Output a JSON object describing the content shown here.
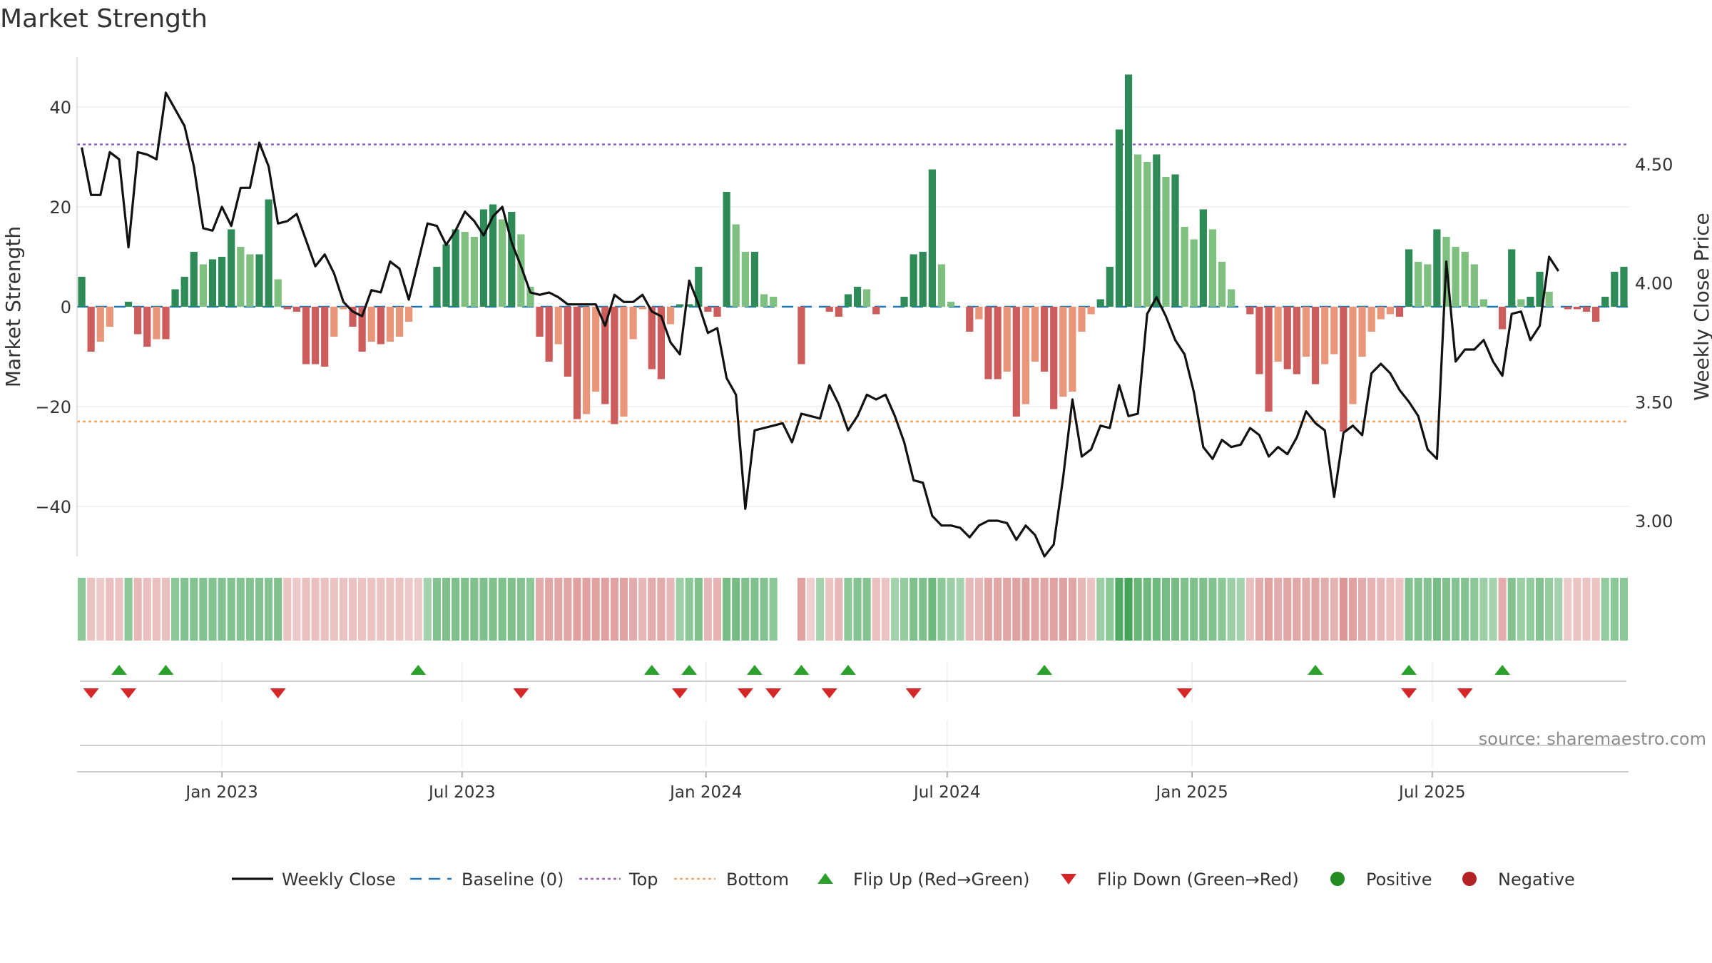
{
  "title": "Market Strength",
  "source": "source: sharemaestro.com",
  "chart_data": {
    "type": "bar",
    "title": "Market Strength",
    "ylabel_left": "Market Strength",
    "ylabel_right": "Weekly Close Price",
    "ylim_left": [
      -50,
      50
    ],
    "ylim_right": [
      2.85,
      4.95
    ],
    "left_ticks": [
      40,
      20,
      0,
      -20,
      -40
    ],
    "left_tick_labels": [
      "40",
      "20",
      "0",
      "−20",
      "−40"
    ],
    "right_ticks": [
      4.5,
      4.0,
      3.5,
      3.0
    ],
    "right_tick_labels": [
      "4.50",
      "4.00",
      "3.50",
      "3.00"
    ],
    "x_tick_labels": [
      "Jan 2023",
      "Jul 2023",
      "Jan 2024",
      "Jul 2024",
      "Jan 2025",
      "Jul 2025"
    ],
    "x_tick_positions": [
      15.5,
      41.2,
      67.3,
      93.1,
      119.3,
      145.0
    ],
    "top_line": 32.5,
    "bottom_line": -23,
    "colors": {
      "strong_green": "#2e8b57",
      "light_green": "#7fbf7f",
      "strong_red": "#cd5c5c",
      "light_red": "#e9967a",
      "price_line": "#111111",
      "baseline": "#1f77b4",
      "top": "#9467bd",
      "bottom": "#f4a460",
      "flip_up": "#2ca02c",
      "flip_down": "#d62728",
      "positive": "#228b22",
      "negative": "#b22222"
    },
    "strength": [
      6,
      -9,
      -7,
      -4,
      0,
      1,
      -5.5,
      -8,
      -6.5,
      -6.5,
      3.5,
      6,
      11,
      8.5,
      9.5,
      10,
      15.5,
      12,
      10.5,
      10.5,
      21.5,
      5.5,
      -0.5,
      -1,
      -11.5,
      -11.5,
      -12,
      -6,
      -0.5,
      -4,
      -9,
      -7,
      -7.5,
      -7,
      -6,
      -3,
      0,
      0,
      8,
      12.5,
      15.5,
      15,
      14,
      19.5,
      20.5,
      17.5,
      19,
      14.5,
      4,
      -6,
      -11,
      -7.5,
      -14,
      -22.5,
      -21.5,
      -17,
      -19.5,
      -23.5,
      -22,
      -6.5,
      -0.5,
      -12.5,
      -14.5,
      -3.5,
      0.5,
      0.5,
      8,
      -1,
      -2,
      23,
      16.5,
      11,
      11,
      2.5,
      2,
      0,
      0,
      -11.5,
      0,
      0,
      -1,
      -2,
      2.5,
      4,
      3.5,
      -1.5,
      0,
      0,
      2,
      10.5,
      11,
      27.5,
      8.5,
      1,
      0,
      -5,
      -2.5,
      -14.5,
      -14.5,
      -13,
      -22,
      -19.5,
      -11,
      -13,
      -20.5,
      -18,
      -17,
      -5,
      -1.5,
      1.5,
      8,
      35.5,
      46.5,
      30.5,
      29,
      30.5,
      26,
      26.5,
      16,
      13.5,
      19.5,
      15.5,
      9,
      3.5,
      0,
      -1.5,
      -13.5,
      -21,
      -11,
      -12.5,
      -13.5,
      -10,
      -15.5,
      -11.5,
      -9.5,
      -25,
      -19.5,
      -10,
      -5,
      -2.5,
      -1.5,
      -2,
      11.5,
      9,
      8.5,
      15.5,
      14,
      12,
      11,
      8.5,
      1.5,
      0,
      -4.5,
      11.5,
      1.5,
      2,
      7,
      3,
      0,
      -0.5,
      -0.5,
      -1,
      -3,
      2,
      7,
      8
    ],
    "close": [
      4.57,
      4.37,
      4.37,
      4.55,
      4.52,
      4.15,
      4.55,
      4.54,
      4.52,
      4.8,
      4.73,
      4.66,
      4.49,
      4.23,
      4.22,
      4.32,
      4.24,
      4.4,
      4.4,
      4.59,
      4.49,
      4.25,
      4.26,
      4.29,
      4.18,
      4.07,
      4.12,
      4.04,
      3.92,
      3.88,
      3.86,
      3.97,
      3.96,
      4.09,
      4.06,
      3.93,
      4.09,
      4.25,
      4.24,
      4.16,
      4.22,
      4.3,
      4.26,
      4.2,
      4.28,
      4.32,
      4.17,
      4.07,
      3.96,
      3.95,
      3.96,
      3.94,
      3.91,
      3.91,
      3.91,
      3.91,
      3.82,
      3.95,
      3.92,
      3.92,
      3.95,
      3.88,
      3.86,
      3.75,
      3.7,
      4.01,
      3.91,
      3.79,
      3.81,
      3.6,
      3.53,
      3.05,
      3.38,
      3.39,
      3.4,
      3.41,
      3.33,
      3.45,
      3.44,
      3.43,
      3.57,
      3.49,
      3.38,
      3.44,
      3.53,
      3.51,
      3.53,
      3.44,
      3.33,
      3.17,
      3.16,
      3.02,
      2.98,
      2.98,
      2.97,
      2.93,
      2.98,
      3.0,
      3.0,
      2.99,
      2.92,
      2.98,
      2.94,
      2.85,
      2.9,
      3.18,
      3.51,
      3.27,
      3.3,
      3.4,
      3.39,
      3.57,
      3.44,
      3.45,
      3.87,
      3.94,
      3.86,
      3.76,
      3.7,
      3.54,
      3.31,
      3.26,
      3.34,
      3.31,
      3.32,
      3.39,
      3.36,
      3.27,
      3.31,
      3.28,
      3.35,
      3.46,
      3.41,
      3.38,
      3.1,
      3.37,
      3.4,
      3.36,
      3.62,
      3.66,
      3.62,
      3.55,
      3.5,
      3.44,
      3.3,
      3.26,
      4.09,
      3.67,
      3.72,
      3.72,
      3.76,
      3.67,
      3.61,
      3.87,
      3.88,
      3.76,
      3.82,
      4.11,
      4.05
    ],
    "color_strip_levels": [
      0.45,
      0.3,
      0.25,
      0.35,
      0.3,
      0.45,
      0.4,
      0.35,
      0.35,
      0.35,
      0.45,
      0.5,
      0.5,
      0.5,
      0.5,
      0.5,
      0.5,
      0.5,
      0.5,
      0.5,
      0.5,
      0.55,
      0.3,
      0.25,
      0.35,
      0.35,
      0.35,
      0.3,
      0.3,
      0.3,
      0.3,
      0.3,
      0.3,
      0.3,
      0.3,
      0.25,
      0.25,
      0.3,
      0.5,
      0.55,
      0.55,
      0.55,
      0.55,
      0.55,
      0.55,
      0.55,
      0.55,
      0.5,
      0.45,
      0.5,
      0.55,
      0.55,
      0.55,
      0.6,
      0.6,
      0.6,
      0.6,
      0.6,
      0.6,
      0.5,
      0.4,
      0.5,
      0.5,
      0.4,
      0.35,
      0.45,
      0.55,
      0.4,
      0.45,
      0.6,
      0.6,
      0.55,
      0.55,
      0.5,
      0.45,
      0.0,
      0.0,
      0.6,
      0.2,
      0.3,
      0.3,
      0.4,
      0.45,
      0.5,
      0.5,
      0.35,
      0.3,
      0.3,
      0.4,
      0.55,
      0.55,
      0.65,
      0.45,
      0.35,
      0.3,
      0.4,
      0.4,
      0.55,
      0.55,
      0.55,
      0.6,
      0.6,
      0.55,
      0.55,
      0.6,
      0.6,
      0.55,
      0.4,
      0.3,
      0.35,
      0.45,
      0.85,
      0.95,
      0.7,
      0.65,
      0.65,
      0.6,
      0.6,
      0.55,
      0.55,
      0.55,
      0.5,
      0.45,
      0.35,
      0.3,
      0.35,
      0.5,
      0.6,
      0.5,
      0.55,
      0.55,
      0.5,
      0.55,
      0.5,
      0.45,
      0.7,
      0.6,
      0.5,
      0.45,
      0.4,
      0.35,
      0.3,
      0.5,
      0.5,
      0.5,
      0.6,
      0.55,
      0.5,
      0.5,
      0.45,
      0.35,
      0.3,
      0.5,
      0.5,
      0.35,
      0.4,
      0.5,
      0.4,
      0.3,
      0.25,
      0.3,
      0.3,
      0.3,
      0.4,
      0.45,
      0.45
    ],
    "flip_up": [
      4,
      9,
      36,
      61,
      65,
      72,
      77,
      82,
      103,
      132,
      142,
      152
    ],
    "flip_down": [
      1,
      5,
      21,
      47,
      64,
      71,
      74,
      80,
      89,
      118,
      142,
      148
    ],
    "legend": [
      {
        "label": "Weekly Close",
        "marker": "line"
      },
      {
        "label": "Baseline (0)",
        "marker": "dash"
      },
      {
        "label": "Top",
        "marker": "dot-purple"
      },
      {
        "label": "Bottom",
        "marker": "dot-orange"
      },
      {
        "label": "Flip Up (Red→Green)",
        "marker": "triangle-up"
      },
      {
        "label": "Flip Down (Green→Red)",
        "marker": "triangle-down"
      },
      {
        "label": "Positive",
        "marker": "circle-green"
      },
      {
        "label": "Negative",
        "marker": "circle-red"
      }
    ]
  }
}
